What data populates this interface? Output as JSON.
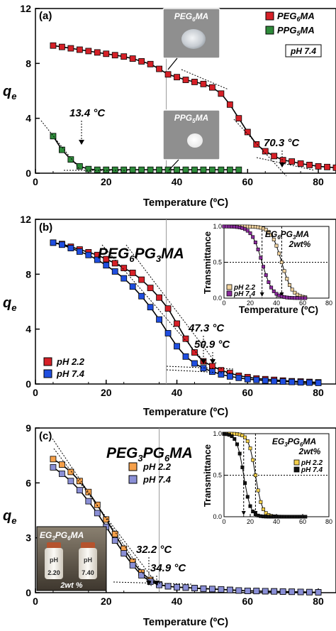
{
  "chart_data": [
    {
      "panel": "a",
      "type": "line",
      "panel_label": "(a)",
      "xlabel": "Temperature (ºC)",
      "ylabel": "q",
      "ylabel_sub": "e",
      "xlim": [
        0,
        85
      ],
      "ylim": [
        0,
        12
      ],
      "xticks": [
        0,
        20,
        40,
        60,
        80
      ],
      "yticks": [
        0,
        4,
        8,
        12
      ],
      "vline": 37,
      "legend": {
        "position": "top-right",
        "note": "pH 7.4"
      },
      "series": [
        {
          "name": "PEG",
          "name_sub": "6",
          "name_tail": "MA",
          "color": "#d62027",
          "x": [
            5,
            7.5,
            10,
            12.5,
            15,
            17.5,
            20,
            22.5,
            25,
            27.5,
            30,
            32.5,
            35,
            37.5,
            40,
            42.5,
            45,
            47.5,
            50,
            52.5,
            55,
            57.5,
            60,
            62.5,
            65,
            67.5,
            70,
            72.5,
            75,
            77.5,
            80,
            82.5,
            85
          ],
          "y": [
            9.3,
            9.2,
            9.1,
            9.0,
            8.9,
            8.8,
            8.7,
            8.6,
            8.5,
            8.35,
            8.15,
            7.95,
            7.6,
            7.2,
            7.0,
            6.8,
            6.65,
            6.5,
            6.25,
            5.8,
            5.0,
            4.0,
            3.0,
            2.1,
            1.6,
            1.25,
            0.95,
            0.85,
            0.7,
            0.6,
            0.5,
            0.45,
            0.4
          ]
        },
        {
          "name": "PPG",
          "name_sub": "5",
          "name_tail": "MA",
          "color": "#2e8b3a",
          "x": [
            5,
            7.5,
            10,
            12.5,
            15,
            17.5,
            20,
            22.5,
            25,
            27.5,
            30,
            32.5,
            35,
            37.5,
            40,
            42.5,
            45,
            47.5,
            50,
            52.5,
            55,
            57.5
          ],
          "y": [
            2.7,
            1.7,
            1.0,
            0.5,
            0.3,
            0.25,
            0.25,
            0.25,
            0.25,
            0.25,
            0.25,
            0.25,
            0.25,
            0.25,
            0.25,
            0.25,
            0.25,
            0.25,
            0.25,
            0.25,
            0.25,
            0.25
          ]
        }
      ],
      "annotations": [
        {
          "text": "13.4 °C",
          "x": 13.4
        },
        {
          "text": "70.3 °C",
          "x": 70.3
        }
      ],
      "photos": [
        {
          "label": "PEG",
          "sub": "6",
          "tail": "MA",
          "kind": "transparent"
        },
        {
          "label": "PPG",
          "sub": "5",
          "tail": "MA",
          "kind": "white"
        }
      ]
    },
    {
      "panel": "b",
      "type": "line",
      "panel_label": "(b)",
      "xlabel": "Temperature (ºC)",
      "ylabel": "q",
      "ylabel_sub": "e",
      "xlim": [
        0,
        85
      ],
      "ylim": [
        0,
        12
      ],
      "xticks": [
        0,
        20,
        40,
        60,
        80
      ],
      "yticks": [
        0,
        4,
        8,
        12
      ],
      "vline": 37,
      "polymer": {
        "a": "PEG",
        "a_sub": "6",
        "b": "PG",
        "b_sub": "3",
        "tail": "MA"
      },
      "legend": {
        "position": "bottom-left"
      },
      "series": [
        {
          "name": "pH 2.2",
          "color": "#d62027",
          "x": [
            5,
            7.5,
            10,
            12.5,
            15,
            17.5,
            20,
            22.5,
            25,
            27.5,
            30,
            32.5,
            35,
            37.5,
            40,
            42.5,
            45,
            47.5,
            50,
            52.5,
            55,
            57.5,
            60,
            62.5,
            65,
            67.5,
            70,
            72.5,
            75,
            77.5,
            80
          ],
          "y": [
            10.3,
            10.2,
            10.0,
            9.8,
            9.6,
            9.4,
            9.1,
            8.8,
            8.45,
            8.1,
            7.6,
            7.0,
            6.3,
            5.5,
            4.4,
            3.3,
            2.3,
            1.65,
            1.3,
            1.0,
            0.8,
            0.6,
            0.5,
            0.4,
            0.35,
            0.3,
            0.25,
            0.2,
            0.18,
            0.15,
            0.12
          ]
        },
        {
          "name": "pH 7.4",
          "color": "#1f4ee0",
          "x": [
            5,
            7.5,
            10,
            12.5,
            15,
            17.5,
            20,
            22.5,
            25,
            27.5,
            30,
            32.5,
            35,
            37.5,
            40,
            42.5,
            45,
            47.5,
            50,
            52.5,
            55,
            57.5,
            60,
            62.5,
            65,
            67.5,
            70,
            72.5,
            75,
            77.5,
            80
          ],
          "y": [
            10.3,
            10.15,
            9.9,
            9.65,
            9.4,
            9.05,
            8.65,
            8.2,
            7.7,
            7.1,
            6.4,
            5.6,
            4.7,
            3.7,
            2.75,
            2.0,
            1.5,
            1.15,
            0.9,
            0.7,
            0.55,
            0.45,
            0.35,
            0.3,
            0.25,
            0.2,
            0.18,
            0.15,
            0.12,
            0.1,
            0.08
          ]
        }
      ],
      "annotations": [
        {
          "text": "47.3 °C",
          "x": 47.3
        },
        {
          "text": "50.9 °C",
          "x": 50.9
        }
      ],
      "inset": {
        "title_a": "EG",
        "title_a_sub": "6",
        "title_b": "PG",
        "title_b_sub": "3",
        "title_tail": "MA",
        "subtitle": "2wt%",
        "ylabel": "Transmittance",
        "xlabel": "Temperature (ºC)",
        "xlim": [
          0,
          80
        ],
        "ylim": [
          0,
          1
        ],
        "xticks": [
          0,
          20,
          40,
          60,
          80
        ],
        "yticks": [
          0.0,
          0.5,
          1.0
        ],
        "ytick_labels": [
          "0.0",
          "0.5",
          "1.0"
        ],
        "hline": 0.5,
        "vlines": [
          29,
          44
        ],
        "series": [
          {
            "name": "pH 2.2",
            "color": "#f2d4a0",
            "midpoint": 44,
            "width": 4
          },
          {
            "name": "pH 7.4",
            "color": "#8a2a9c",
            "midpoint": 29,
            "width": 4
          }
        ]
      }
    },
    {
      "panel": "c",
      "type": "line",
      "panel_label": "(c)",
      "xlabel": "Temperature (ºC)",
      "ylabel": "q",
      "ylabel_sub": "e",
      "xlim": [
        0,
        85
      ],
      "ylim": [
        0,
        9
      ],
      "xticks": [
        0,
        20,
        40,
        60,
        80
      ],
      "yticks": [
        0,
        3,
        6,
        9
      ],
      "vline": 35,
      "polymer": {
        "a": "PEG",
        "a_sub": "3",
        "b": "PG",
        "b_sub": "6",
        "tail": "MA"
      },
      "legend": {
        "position": "top-center"
      },
      "series": [
        {
          "name": "pH 2.2",
          "color": "#f5a04a",
          "x": [
            5,
            7.5,
            10,
            12.5,
            15,
            17.5,
            20,
            22.5,
            25,
            27.5,
            30,
            32.5,
            35,
            37.5,
            40,
            42.5,
            45,
            47.5,
            50,
            52.5,
            55,
            57.5,
            60,
            62.5,
            65,
            67.5,
            70,
            72.5,
            75,
            77.5,
            80
          ],
          "y": [
            7.3,
            7.0,
            6.6,
            6.1,
            5.5,
            4.8,
            4.0,
            3.2,
            2.4,
            1.7,
            1.1,
            0.7,
            0.45,
            0.35,
            0.3,
            0.28,
            0.25,
            0.22,
            0.2,
            0.18,
            0.15,
            0.12,
            0.1,
            0.09,
            0.08,
            0.07,
            0.06,
            0.05,
            0.04,
            0.03,
            0.02
          ]
        },
        {
          "name": "pH 7.4",
          "color": "#8a8fd6",
          "x": [
            5,
            7.5,
            10,
            12.5,
            15,
            17.5,
            20,
            22.5,
            25,
            27.5,
            30,
            32.5,
            35,
            37.5,
            40,
            42.5,
            45,
            47.5,
            50,
            52.5,
            55,
            57.5,
            60,
            62.5,
            65,
            67.5,
            70,
            72.5,
            75,
            77.5,
            80
          ],
          "y": [
            6.85,
            6.5,
            6.1,
            5.6,
            5.0,
            4.35,
            3.6,
            2.85,
            2.15,
            1.5,
            0.95,
            0.6,
            0.42,
            0.35,
            0.3,
            0.28,
            0.25,
            0.22,
            0.2,
            0.18,
            0.15,
            0.12,
            0.1,
            0.09,
            0.08,
            0.07,
            0.06,
            0.05,
            0.04,
            0.03,
            0.02
          ]
        }
      ],
      "annotations": [
        {
          "text": "32.2 °C",
          "x": 32.2
        },
        {
          "text": "34.9 °C",
          "x": 34.9
        }
      ],
      "inset": {
        "title_a": "EG",
        "title_a_sub": "3",
        "title_b": "PG",
        "title_b_sub": "6",
        "title_tail": "MA",
        "subtitle": "2wt%",
        "ylabel": "Transmittance",
        "xlim": [
          0,
          80
        ],
        "ylim": [
          0,
          1
        ],
        "xticks": [
          0,
          20,
          40,
          60,
          80
        ],
        "yticks": [
          0.0,
          0.5,
          1.0
        ],
        "ytick_labels": [
          "0.0",
          "0.5",
          "1.0"
        ],
        "hline": 0.5,
        "vlines": [
          15,
          24
        ],
        "series": [
          {
            "name": "pH 2.2",
            "color": "#f5d04a",
            "midpoint": 24,
            "width": 2.6
          },
          {
            "name": "pH 7.4",
            "color": "#111111",
            "midpoint": 15,
            "width": 2.6
          }
        ]
      },
      "photo": {
        "title_a": "EG",
        "title_a_sub": "3",
        "title_b": "PG",
        "title_b_sub": "6",
        "title_tail": "MA",
        "vials": [
          "2.20",
          "7.40"
        ],
        "vial_label": "pH",
        "caption": "2wt %"
      }
    }
  ]
}
